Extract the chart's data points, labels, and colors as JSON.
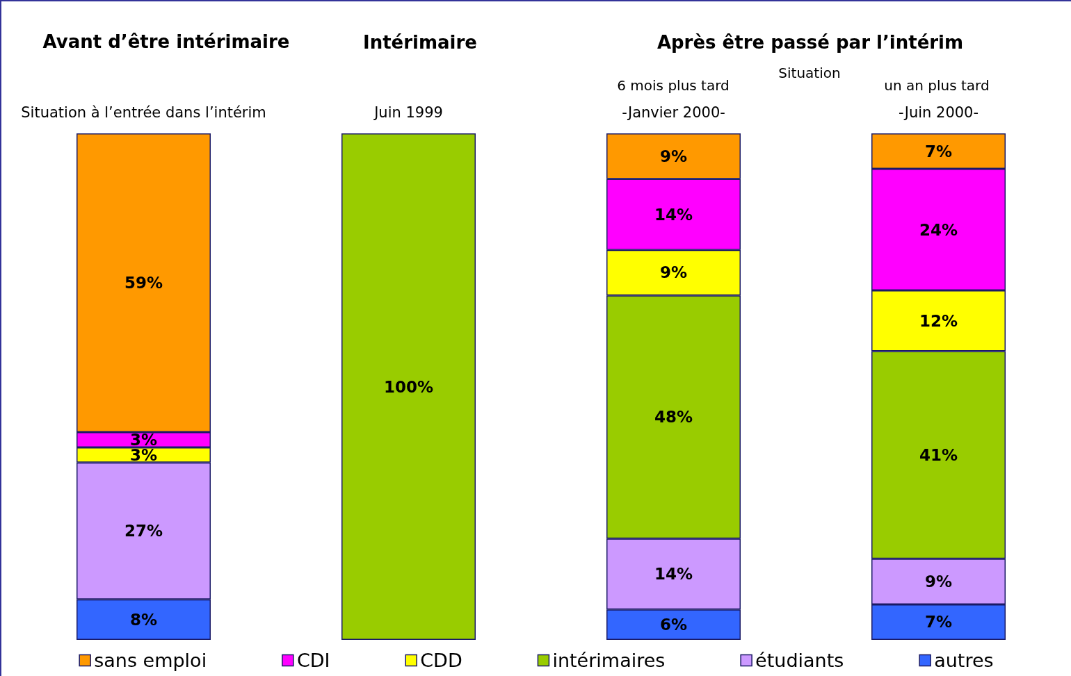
{
  "chart_data": {
    "type": "bar",
    "stacked": true,
    "categories": [
      "Situation à l’entrée dans l’intérim",
      "Juin 1999",
      "-Janvier 2000-",
      "-Juin 2000-"
    ],
    "annotations": [
      "Avant d’être intérimaire",
      "Intérimaire",
      "Après être passé par l’intérim",
      "6 mois plus tard",
      "Situation",
      "un an plus tard"
    ],
    "series": [
      {
        "name": "autres",
        "color": "#3366ff",
        "values": [
          8,
          null,
          6,
          7
        ],
        "value_labels": [
          "8%",
          null,
          "6%",
          "7%"
        ]
      },
      {
        "name": "étudiants",
        "color": "#cc99ff",
        "values": [
          27,
          null,
          14,
          9
        ],
        "value_labels": [
          "27%",
          null,
          "14%",
          "9%"
        ]
      },
      {
        "name": "intérimaires",
        "color": "#99cc00",
        "values": [
          null,
          100,
          48,
          41
        ],
        "value_labels": [
          null,
          "100%",
          "48%",
          "41%"
        ]
      },
      {
        "name": "CDD",
        "color": "#ffff00",
        "values": [
          3,
          null,
          9,
          12
        ],
        "value_labels": [
          "3%",
          null,
          "9%",
          "12%"
        ]
      },
      {
        "name": "CDI",
        "color": "#ff00ff",
        "values": [
          3,
          null,
          14,
          24
        ],
        "value_labels": [
          "3%",
          null,
          "14%",
          "24%"
        ]
      },
      {
        "name": "sans emploi",
        "color": "#ff9900",
        "values": [
          59,
          null,
          9,
          7
        ],
        "value_labels": [
          "59%",
          null,
          "9%",
          "7%"
        ]
      }
    ],
    "legend": "bottom"
  }
}
